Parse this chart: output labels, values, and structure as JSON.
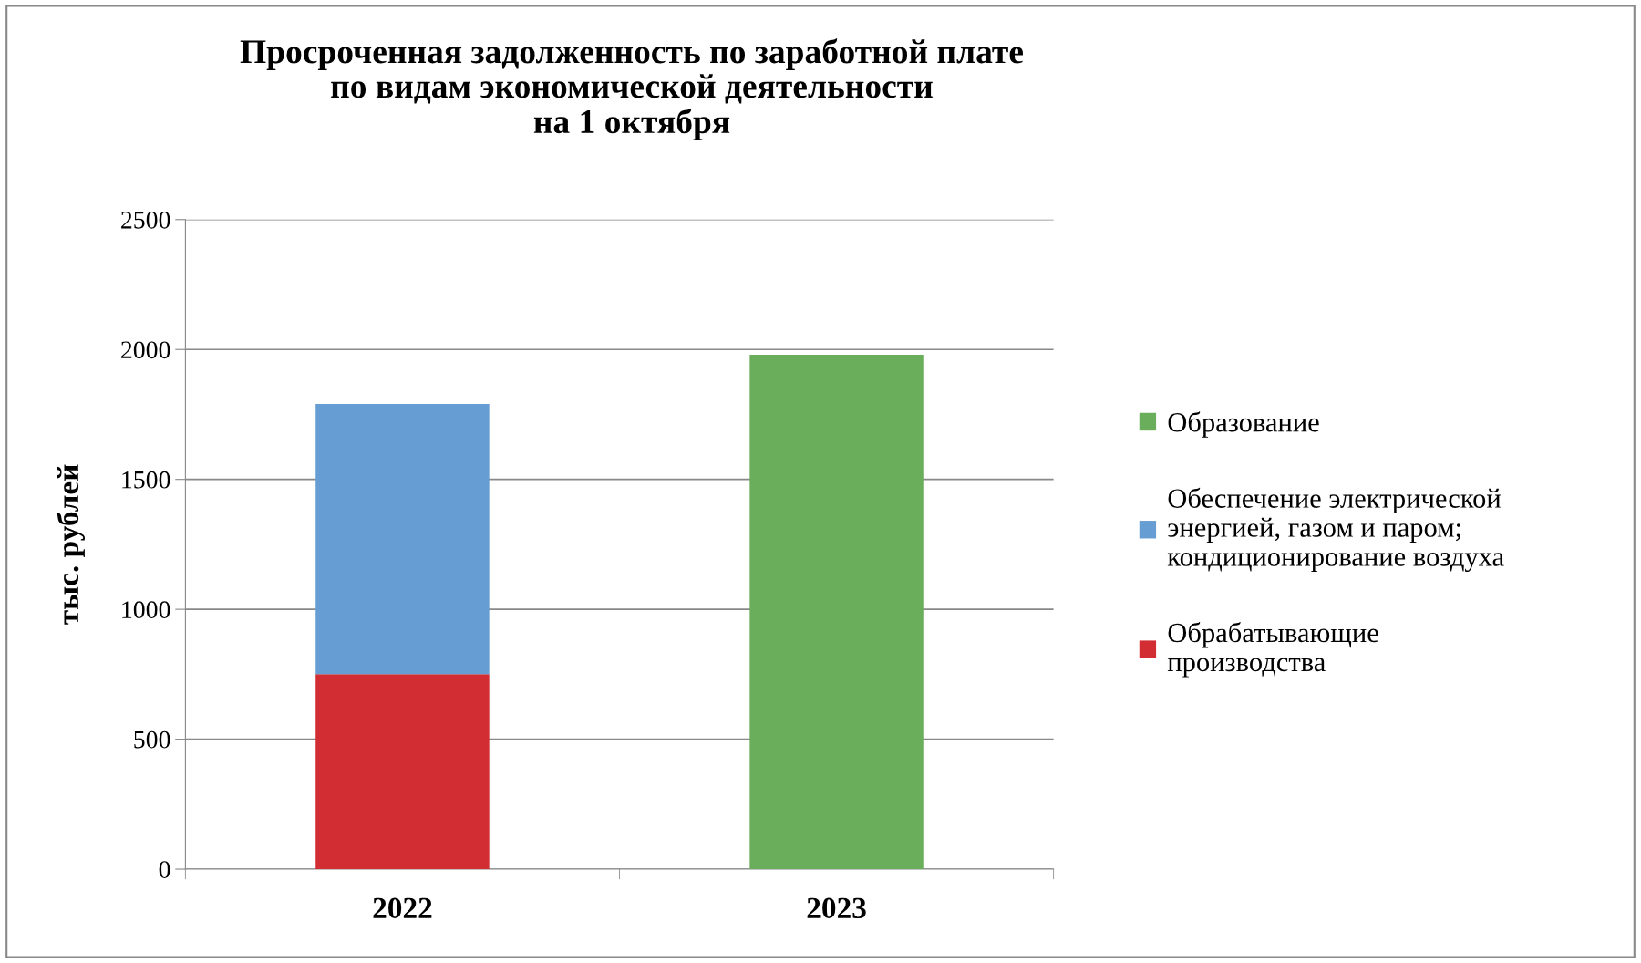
{
  "chart_data": {
    "type": "bar",
    "title": "Просроченная задолженность по заработной плате\nпо видам экономической деятельности\nна 1 октября",
    "categories": [
      "2022",
      "2023"
    ],
    "ylabel": "тыс. рублей",
    "stacked": true,
    "series": [
      {
        "name": "Обрабатывающие\nпроизводства",
        "color": "#d12d33",
        "values": [
          750,
          null
        ]
      },
      {
        "name": "Обеспечение электрической\nэнергией, газом и паром;\nкондиционирование воздуха",
        "color": "#669ed4",
        "values": [
          1040,
          null
        ]
      },
      {
        "name": "Образование",
        "color": "#6aad5a",
        "values": [
          null,
          1980
        ]
      }
    ],
    "ylim": [
      0,
      2500
    ],
    "yticks": [
      0,
      500,
      1000,
      1500,
      2000,
      2500
    ],
    "grid": "y",
    "legend": "right"
  }
}
